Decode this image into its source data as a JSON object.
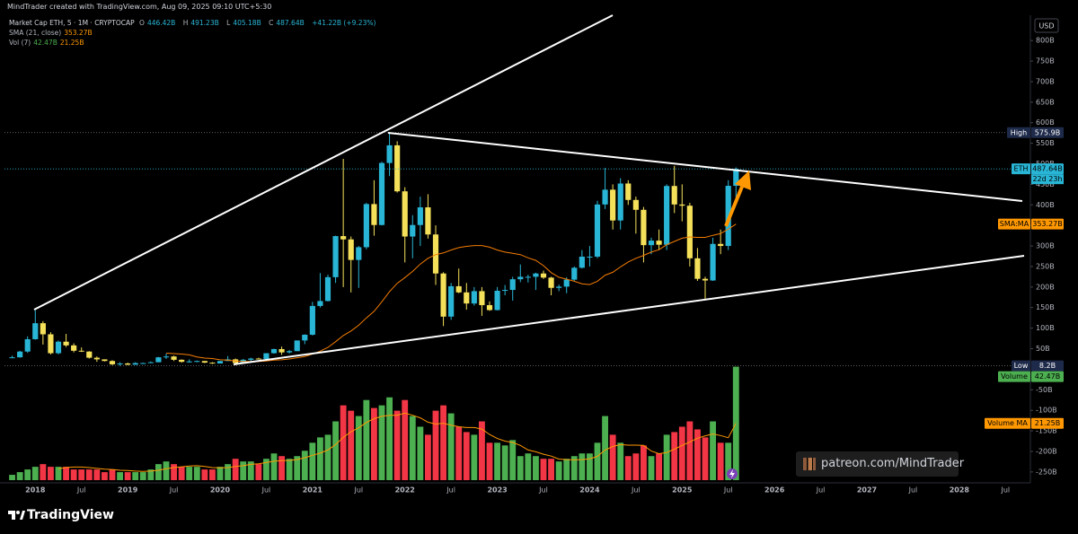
{
  "header": {
    "text": "MindTrader created with TradingView.com, Aug 09, 2025 09:10 UTC+5:30"
  },
  "chart_data": {
    "type": "candlestick",
    "symbol": "Market Cap ETH, 5 · 1M · CRYPTOCAP",
    "ohlc_prefixes": [
      "O",
      "H",
      "L",
      "C"
    ],
    "last_labels": [
      "446.42B",
      "491.23B",
      "405.18B",
      "487.64B"
    ],
    "change": "+41.22B (+9.23%)",
    "up_color": "#29b6d6",
    "down_color": "#f5e05a",
    "dates": [
      "2017-10",
      "2017-11",
      "2017-12",
      "2018-01",
      "2018-02",
      "2018-03",
      "2018-04",
      "2018-05",
      "2018-06",
      "2018-07",
      "2018-08",
      "2018-09",
      "2018-10",
      "2018-11",
      "2018-12",
      "2019-01",
      "2019-02",
      "2019-03",
      "2019-04",
      "2019-05",
      "2019-06",
      "2019-07",
      "2019-08",
      "2019-09",
      "2019-10",
      "2019-11",
      "2019-12",
      "2020-01",
      "2020-02",
      "2020-03",
      "2020-04",
      "2020-05",
      "2020-06",
      "2020-07",
      "2020-08",
      "2020-09",
      "2020-10",
      "2020-11",
      "2020-12",
      "2021-01",
      "2021-02",
      "2021-03",
      "2021-04",
      "2021-05",
      "2021-06",
      "2021-07",
      "2021-08",
      "2021-09",
      "2021-10",
      "2021-11",
      "2021-12",
      "2022-01",
      "2022-02",
      "2022-03",
      "2022-04",
      "2022-05",
      "2022-06",
      "2022-07",
      "2022-08",
      "2022-09",
      "2022-10",
      "2022-11",
      "2022-12",
      "2023-01",
      "2023-02",
      "2023-03",
      "2023-04",
      "2023-05",
      "2023-06",
      "2023-07",
      "2023-08",
      "2023-09",
      "2023-10",
      "2023-11",
      "2023-12",
      "2024-01",
      "2024-02",
      "2024-03",
      "2024-04",
      "2024-05",
      "2024-06",
      "2024-07",
      "2024-08",
      "2024-09",
      "2024-10",
      "2024-11",
      "2024-12",
      "2025-01",
      "2025-02",
      "2025-03",
      "2025-04",
      "2025-05",
      "2025-06",
      "2025-07",
      "2025-08"
    ],
    "ohlc": [
      [
        29,
        33,
        27,
        29
      ],
      [
        29,
        45,
        28,
        43
      ],
      [
        43,
        80,
        40,
        73
      ],
      [
        73,
        144,
        72,
        112
      ],
      [
        112,
        117,
        60,
        85
      ],
      [
        85,
        90,
        36,
        39
      ],
      [
        39,
        70,
        36,
        67
      ],
      [
        67,
        86,
        54,
        58
      ],
      [
        58,
        63,
        41,
        45
      ],
      [
        45,
        53,
        42,
        43
      ],
      [
        43,
        44,
        26,
        28
      ],
      [
        28,
        31,
        18,
        24
      ],
      [
        24,
        24,
        19,
        20
      ],
      [
        20,
        22,
        10,
        12
      ],
      [
        12,
        17,
        8.2,
        14
      ],
      [
        14,
        16,
        10,
        11
      ],
      [
        11,
        17,
        11,
        15
      ],
      [
        15,
        16,
        14,
        15
      ],
      [
        15,
        19,
        15,
        17
      ],
      [
        17,
        30,
        17,
        29
      ],
      [
        29,
        38,
        25,
        31
      ],
      [
        31,
        33,
        20,
        23
      ],
      [
        23,
        24,
        16,
        18
      ],
      [
        18,
        24,
        16,
        19
      ],
      [
        19,
        21,
        17,
        20
      ],
      [
        20,
        20,
        15,
        16
      ],
      [
        16,
        17,
        13,
        14
      ],
      [
        14,
        20,
        14,
        20
      ],
      [
        20,
        32,
        20,
        24
      ],
      [
        24,
        26,
        10,
        15
      ],
      [
        15,
        25,
        14,
        23
      ],
      [
        23,
        28,
        20,
        26
      ],
      [
        26,
        28,
        24,
        25
      ],
      [
        25,
        39,
        25,
        39
      ],
      [
        39,
        50,
        38,
        49
      ],
      [
        49,
        55,
        35,
        41
      ],
      [
        41,
        47,
        38,
        44
      ],
      [
        44,
        70,
        44,
        70
      ],
      [
        70,
        85,
        61,
        84
      ],
      [
        84,
        164,
        82,
        154
      ],
      [
        154,
        234,
        150,
        166
      ],
      [
        166,
        230,
        165,
        224
      ],
      [
        224,
        325,
        210,
        324
      ],
      [
        324,
        512,
        200,
        316
      ],
      [
        316,
        323,
        187,
        266
      ],
      [
        266,
        300,
        198,
        297
      ],
      [
        297,
        405,
        292,
        402
      ],
      [
        402,
        460,
        325,
        351
      ],
      [
        351,
        505,
        350,
        502
      ],
      [
        502,
        575.9,
        470,
        545
      ],
      [
        545,
        555,
        430,
        433
      ],
      [
        433,
        443,
        260,
        323
      ],
      [
        323,
        375,
        270,
        351
      ],
      [
        351,
        420,
        300,
        394
      ],
      [
        394,
        426,
        318,
        328
      ],
      [
        328,
        350,
        205,
        233
      ],
      [
        233,
        236,
        105,
        128
      ],
      [
        128,
        210,
        120,
        202
      ],
      [
        202,
        245,
        185,
        187
      ],
      [
        187,
        210,
        145,
        160
      ],
      [
        160,
        200,
        155,
        190
      ],
      [
        190,
        200,
        130,
        156
      ],
      [
        156,
        165,
        142,
        144
      ],
      [
        144,
        200,
        143,
        191
      ],
      [
        191,
        205,
        180,
        193
      ],
      [
        193,
        225,
        167,
        219
      ],
      [
        219,
        255,
        212,
        225
      ],
      [
        225,
        230,
        211,
        225
      ],
      [
        225,
        235,
        193,
        233
      ],
      [
        233,
        240,
        220,
        223
      ],
      [
        223,
        225,
        180,
        198
      ],
      [
        198,
        206,
        190,
        201
      ],
      [
        201,
        224,
        185,
        218
      ],
      [
        218,
        250,
        215,
        247
      ],
      [
        247,
        290,
        245,
        274
      ],
      [
        274,
        300,
        250,
        274
      ],
      [
        274,
        410,
        270,
        401
      ],
      [
        401,
        490,
        390,
        437
      ],
      [
        437,
        450,
        340,
        362
      ],
      [
        362,
        465,
        340,
        452
      ],
      [
        452,
        460,
        400,
        412
      ],
      [
        412,
        420,
        330,
        388
      ],
      [
        388,
        395,
        260,
        302
      ],
      [
        302,
        320,
        280,
        313
      ],
      [
        313,
        340,
        290,
        303
      ],
      [
        303,
        450,
        290,
        446
      ],
      [
        446,
        495,
        380,
        401
      ],
      [
        401,
        450,
        360,
        398
      ],
      [
        398,
        405,
        250,
        270
      ],
      [
        270,
        295,
        215,
        220
      ],
      [
        220,
        225,
        170,
        216
      ],
      [
        216,
        320,
        215,
        305
      ],
      [
        305,
        340,
        280,
        300
      ],
      [
        300,
        460,
        290,
        446.42
      ],
      [
        446.42,
        491.23,
        405.18,
        487.64
      ]
    ],
    "sma": {
      "name": "SMA (21, close)",
      "value_label": "353.27B",
      "color": "#f57c00",
      "values": [
        null,
        null,
        null,
        null,
        null,
        null,
        null,
        null,
        null,
        null,
        null,
        null,
        null,
        null,
        null,
        null,
        null,
        null,
        null,
        null,
        39,
        38,
        37,
        35,
        30,
        27,
        26,
        23,
        22,
        20,
        19,
        19,
        19,
        20,
        22,
        23,
        25,
        28,
        31,
        37,
        44,
        53,
        67,
        82,
        93,
        107,
        125,
        141,
        164,
        189,
        209,
        223,
        238,
        256,
        270,
        279,
        283,
        290,
        296,
        299,
        301,
        301,
        297,
        290,
        285,
        282,
        279,
        271,
        265,
        252,
        235,
        224,
        219,
        214,
        208,
        206,
        214,
        229,
        236,
        249,
        261,
        270,
        277,
        285,
        291,
        303,
        311,
        319,
        322,
        321,
        321,
        326,
        330,
        341,
        353.27
      ]
    },
    "volume": {
      "name": "Vol (7)",
      "value_label": "42.47B",
      "up_color": "#4caf50",
      "down_color": "#f23645",
      "ylim": [
        0,
        43
      ],
      "values": [
        2,
        3,
        4,
        5,
        6,
        5,
        5,
        5,
        4,
        4,
        4,
        4,
        3,
        4,
        3,
        3,
        3,
        3,
        4,
        6,
        7,
        6,
        5,
        5,
        5,
        4,
        4,
        5,
        6,
        8,
        7,
        7,
        6,
        8,
        10,
        9,
        8,
        9,
        11,
        14,
        16,
        17,
        22,
        28,
        26,
        24,
        30,
        27,
        28,
        31,
        26,
        30,
        24,
        20,
        17,
        26,
        28,
        25,
        20,
        18,
        17,
        22,
        14,
        14,
        13,
        15,
        9,
        10,
        9,
        8,
        8,
        7,
        8,
        9,
        10,
        10,
        14,
        24,
        17,
        14,
        9,
        10,
        13,
        9,
        10,
        17,
        18,
        20,
        22,
        19,
        16,
        22,
        14,
        14,
        42.47
      ],
      "ma": {
        "color": "#ff9800",
        "value_label": "21.25B",
        "values": [
          null,
          null,
          null,
          null,
          null,
          null,
          4.3,
          4.7,
          4.9,
          4.9,
          4.7,
          4.4,
          4.1,
          4.0,
          3.7,
          3.6,
          3.4,
          3.3,
          3.4,
          3.7,
          4.3,
          4.7,
          5.0,
          5.3,
          5.4,
          5.1,
          4.7,
          4.6,
          4.7,
          5.1,
          5.4,
          5.9,
          6.1,
          6.6,
          7.1,
          7.3,
          7.4,
          7.7,
          8.4,
          9.3,
          10.1,
          11.3,
          13.3,
          16.0,
          18.1,
          19.6,
          21.6,
          23.0,
          23.9,
          24.3,
          24.3,
          25.1,
          24.3,
          23.3,
          21.7,
          21.0,
          21.3,
          20.6,
          20.0,
          19.7,
          19.7,
          19.1,
          17.1,
          15.6,
          14.6,
          14.1,
          13.0,
          11.3,
          10.6,
          9.7,
          9.0,
          7.9,
          7.7,
          7.6,
          7.7,
          8.0,
          8.9,
          11.3,
          12.6,
          13.3,
          13.1,
          13.1,
          13.0,
          10.9,
          9.9,
          10.3,
          11.6,
          13.0,
          14.3,
          15.7,
          16.6,
          17.3,
          16.7,
          15.9,
          21.25
        ]
      }
    },
    "xlim": [
      "2017-09",
      "2028-10"
    ],
    "xticks": [
      {
        "value": "2018-01",
        "label": "2018"
      },
      {
        "value": "2018-07",
        "label": "Jul"
      },
      {
        "value": "2019-01",
        "label": "2019"
      },
      {
        "value": "2019-07",
        "label": "Jul"
      },
      {
        "value": "2020-01",
        "label": "2020"
      },
      {
        "value": "2020-07",
        "label": "Jul"
      },
      {
        "value": "2021-01",
        "label": "2021"
      },
      {
        "value": "2021-07",
        "label": "Jul"
      },
      {
        "value": "2022-01",
        "label": "2022"
      },
      {
        "value": "2022-07",
        "label": "Jul"
      },
      {
        "value": "2023-01",
        "label": "2023"
      },
      {
        "value": "2023-07",
        "label": "Jul"
      },
      {
        "value": "2024-01",
        "label": "2024"
      },
      {
        "value": "2024-07",
        "label": "Jul"
      },
      {
        "value": "2025-01",
        "label": "2025"
      },
      {
        "value": "2025-07",
        "label": "Jul"
      },
      {
        "value": "2026-01",
        "label": "2026"
      },
      {
        "value": "2026-07",
        "label": "Jul"
      },
      {
        "value": "2027-01",
        "label": "2027"
      },
      {
        "value": "2027-07",
        "label": "Jul"
      },
      {
        "value": "2028-01",
        "label": "2028"
      },
      {
        "value": "2028-07",
        "label": "Jul"
      }
    ],
    "ylim": [
      -270,
      855
    ],
    "yticks": [
      {
        "value": 800,
        "label": "800B"
      },
      {
        "value": 750,
        "label": "750B"
      },
      {
        "value": 700,
        "label": "700B"
      },
      {
        "value": 650,
        "label": "650B"
      },
      {
        "value": 600,
        "label": "600B"
      },
      {
        "value": 550,
        "label": "550B"
      },
      {
        "value": 500,
        "label": "500B"
      },
      {
        "value": 450,
        "label": "450B"
      },
      {
        "value": 400,
        "label": "400B"
      },
      {
        "value": 350,
        "label": "350B"
      },
      {
        "value": 300,
        "label": "300B"
      },
      {
        "value": 250,
        "label": "250B"
      },
      {
        "value": 200,
        "label": "200B"
      },
      {
        "value": 150,
        "label": "150B"
      },
      {
        "value": 100,
        "label": "100B"
      },
      {
        "value": 50,
        "label": "50B"
      },
      {
        "value": -50,
        "label": "-50B"
      },
      {
        "value": -100,
        "label": "-100B"
      },
      {
        "value": -150,
        "label": "-150B"
      },
      {
        "value": -200,
        "label": "-200B"
      },
      {
        "value": -250,
        "label": "-250B"
      }
    ],
    "grid": false,
    "currency": "USD",
    "markers": {
      "high": {
        "name": "High",
        "value": 575.9,
        "label": "575.9B"
      },
      "low": {
        "name": "Low",
        "value": 8.2,
        "label": "8.2B"
      },
      "last": {
        "name": "ETH",
        "label": "487.64B",
        "countdown": "22d 23h"
      },
      "sma": {
        "name": "SMA:MA",
        "label": "353.27B"
      },
      "volume": {
        "name": "Volume",
        "label": "42.47B"
      },
      "volume_ma": {
        "name": "Volume MA",
        "label": "21.25B"
      }
    }
  },
  "watermark": "patreon.com/MindTrader",
  "brand": "TradingView"
}
